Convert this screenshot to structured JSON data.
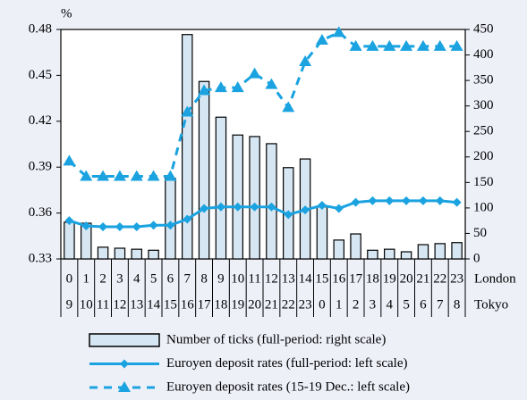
{
  "chart_data": {
    "type": "bar",
    "y_unit": "%",
    "categories": [
      0,
      1,
      2,
      3,
      4,
      5,
      6,
      7,
      8,
      9,
      10,
      11,
      12,
      13,
      14,
      15,
      16,
      17,
      18,
      19,
      20,
      21,
      22,
      23
    ],
    "categories_tokyo": [
      9,
      10,
      11,
      12,
      13,
      14,
      15,
      16,
      17,
      18,
      19,
      20,
      21,
      22,
      23,
      0,
      1,
      2,
      3,
      4,
      5,
      6,
      7,
      8
    ],
    "category_row_labels": [
      "London",
      "Tokyo"
    ],
    "ylim": [
      0.33,
      0.48
    ],
    "yticks": [
      0.33,
      0.36,
      0.39,
      0.42,
      0.45,
      0.48
    ],
    "y2lim": [
      0,
      450
    ],
    "y2ticks": [
      0,
      50,
      100,
      150,
      200,
      250,
      300,
      350,
      400,
      450
    ],
    "grid": false,
    "series": [
      {
        "name": "Number of ticks (full-period: right scale)",
        "type": "bar",
        "axis": "y2",
        "color": "#d6e6f3",
        "values": [
          72,
          70,
          23,
          21,
          19,
          17,
          158,
          440,
          348,
          278,
          243,
          240,
          226,
          179,
          196,
          102,
          37,
          49,
          17,
          19,
          14,
          28,
          30,
          32
        ]
      },
      {
        "name": "Euroyen deposit rates (full-period: left scale)",
        "type": "line",
        "color": "#1aa3e0",
        "marker": "diamond",
        "dashed": false,
        "values": [
          0.355,
          0.3516,
          0.351,
          0.351,
          0.351,
          0.352,
          0.352,
          0.356,
          0.363,
          0.364,
          0.364,
          0.364,
          0.364,
          0.359,
          0.362,
          0.365,
          0.363,
          0.367,
          0.368,
          0.368,
          0.368,
          0.368,
          0.368,
          0.367
        ]
      },
      {
        "name": "Euroyen deposit rates (15-19 Dec.: left scale)",
        "type": "line",
        "color": "#1aa3e0",
        "marker": "triangle",
        "dashed": true,
        "values": [
          0.394,
          0.384,
          0.384,
          0.384,
          0.384,
          0.384,
          0.384,
          0.426,
          0.44,
          0.442,
          0.442,
          0.451,
          0.444,
          0.429,
          0.459,
          0.473,
          0.478,
          0.469,
          0.469,
          0.469,
          0.469,
          0.469,
          0.469,
          0.469
        ]
      }
    ]
  }
}
